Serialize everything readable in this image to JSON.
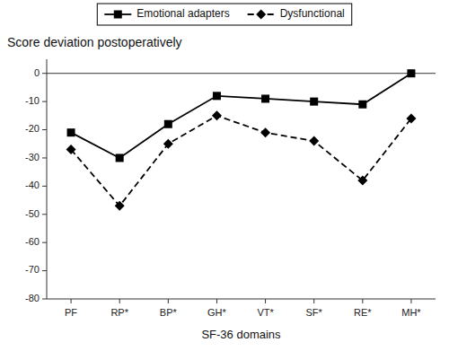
{
  "chart_data": {
    "type": "line",
    "ylabel": "Score deviation postoperatively",
    "xlabel": "SF-36 domains",
    "categories": [
      "PF",
      "RP*",
      "BP*",
      "GH*",
      "VT*",
      "SF*",
      "RE*",
      "MH*"
    ],
    "series": [
      {
        "name": "Emotional adapters",
        "color": "#000000",
        "line_style": "solid",
        "marker": "square",
        "values": [
          -21,
          -30,
          -18,
          -8,
          -9,
          -10,
          -11,
          0
        ]
      },
      {
        "name": "Dysfunctional",
        "color": "#000000",
        "line_style": "dashed",
        "marker": "diamond",
        "values": [
          -27,
          -47,
          -25,
          -15,
          -21,
          -24,
          -38,
          -16
        ]
      }
    ],
    "ylim": [
      -80,
      5
    ],
    "yticks": [
      0,
      -10,
      -20,
      -30,
      -40,
      -50,
      -60,
      -70,
      -80
    ],
    "legend": "top",
    "grid": false
  }
}
